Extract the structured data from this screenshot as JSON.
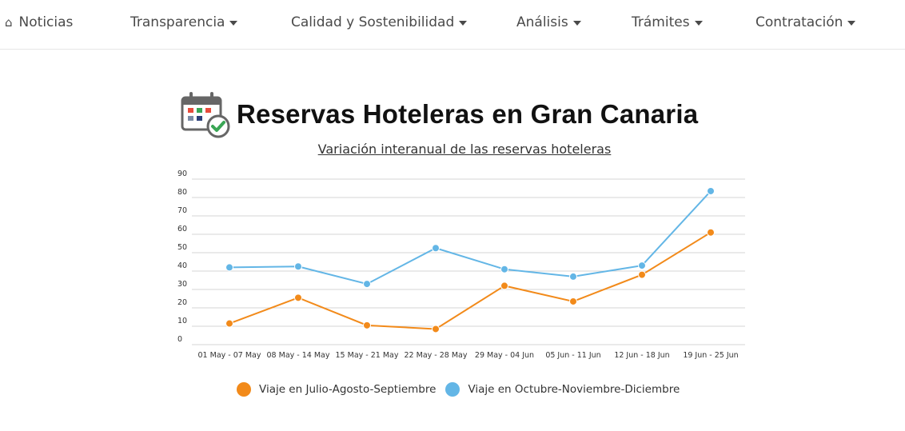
{
  "nav": {
    "items": [
      {
        "label": "Noticias",
        "icon": "home-icon",
        "dropdown": false
      },
      {
        "label": "Transparencia",
        "dropdown": true
      },
      {
        "label": "Calidad y Sostenibilidad",
        "dropdown": true
      },
      {
        "label": "Análisis",
        "dropdown": true
      },
      {
        "label": "Trámites",
        "dropdown": true
      },
      {
        "label": "Contratación",
        "dropdown": true
      }
    ]
  },
  "page": {
    "title": "Reservas Hoteleras en Gran Canaria",
    "title_icon": "calendar-check-icon"
  },
  "chart_data": {
    "type": "line",
    "title": "Variación interanual de las reservas hoteleras",
    "xlabel": "",
    "ylabel": "",
    "ylim": [
      0,
      90
    ],
    "yticks": [
      0,
      10,
      20,
      30,
      40,
      50,
      60,
      70,
      80,
      90
    ],
    "grid": true,
    "legend_position": "bottom",
    "categories": [
      "01 May - 07 May",
      "08 May - 14 May",
      "15 May - 21 May",
      "22 May - 28 May",
      "29 May - 04 Jun",
      "05 Jun - 11 Jun",
      "12 Jun - 18 Jun",
      "19 Jun - 25 Jun"
    ],
    "series": [
      {
        "name": "Viaje en Julio-Agosto-Septiembre",
        "color": "#f28a1a",
        "values": [
          11.5,
          25.5,
          10.5,
          8.5,
          32,
          23.5,
          38,
          61
        ]
      },
      {
        "name": "Viaje en Octubre-Noviembre-Diciembre",
        "color": "#63b6e6",
        "values": [
          42,
          42.5,
          33,
          52.5,
          41,
          37,
          43,
          83.5
        ]
      }
    ]
  }
}
